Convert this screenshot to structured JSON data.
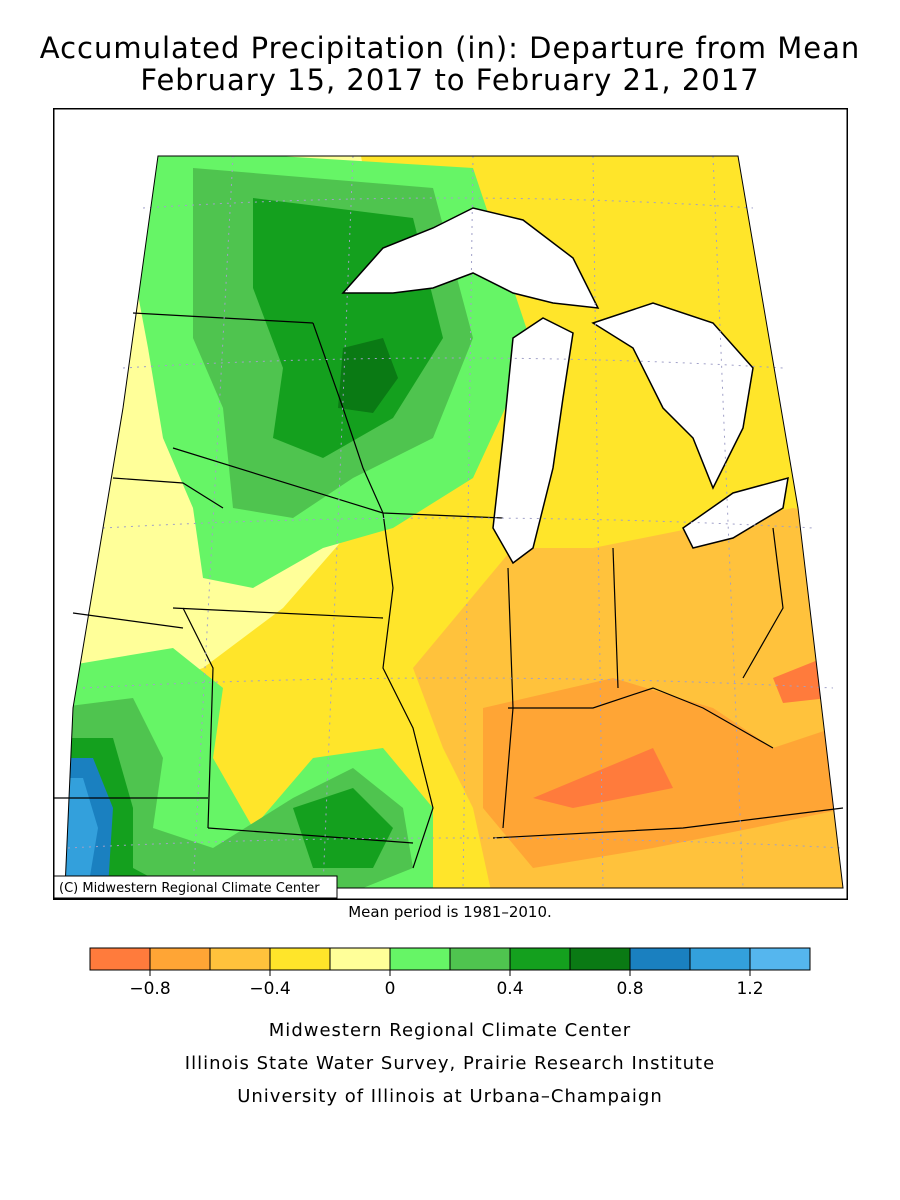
{
  "title": {
    "line1": "Accumulated Precipitation (in): Departure from Mean",
    "line2": "February 15, 2017 to February 21, 2017"
  },
  "map": {
    "copyright": "(C) Midwestern Regional Climate Center",
    "colors": {
      "dark_blue": "#1a80c0",
      "blue": "#33a0dc",
      "light_blue": "#55b6ee",
      "darkest_green": "#0a7a14",
      "dark_green": "#14a01e",
      "green": "#4fc44f",
      "light_green": "#66f566",
      "pale_yellow": "#ffff99",
      "yellow": "#ffe52a",
      "light_orange": "#ffc23c",
      "orange": "#ffa535",
      "red_orange": "#ff7b3c"
    }
  },
  "mean_period": "Mean period is 1981–2010.",
  "legend": {
    "colors": [
      "#ff7b3c",
      "#ffa535",
      "#ffc23c",
      "#ffe52a",
      "#ffff99",
      "#66f566",
      "#4fc44f",
      "#14a01e",
      "#0a7a14",
      "#1a80c0",
      "#33a0dc",
      "#55b6ee"
    ],
    "labels": [
      "−0.8",
      "−0.4",
      "0",
      "0.4",
      "0.8",
      "1.2"
    ]
  },
  "credits": {
    "line1": "Midwestern Regional Climate Center",
    "line2": "Illinois State Water Survey, Prairie Research Institute",
    "line3": "University of Illinois at Urbana–Champaign"
  }
}
